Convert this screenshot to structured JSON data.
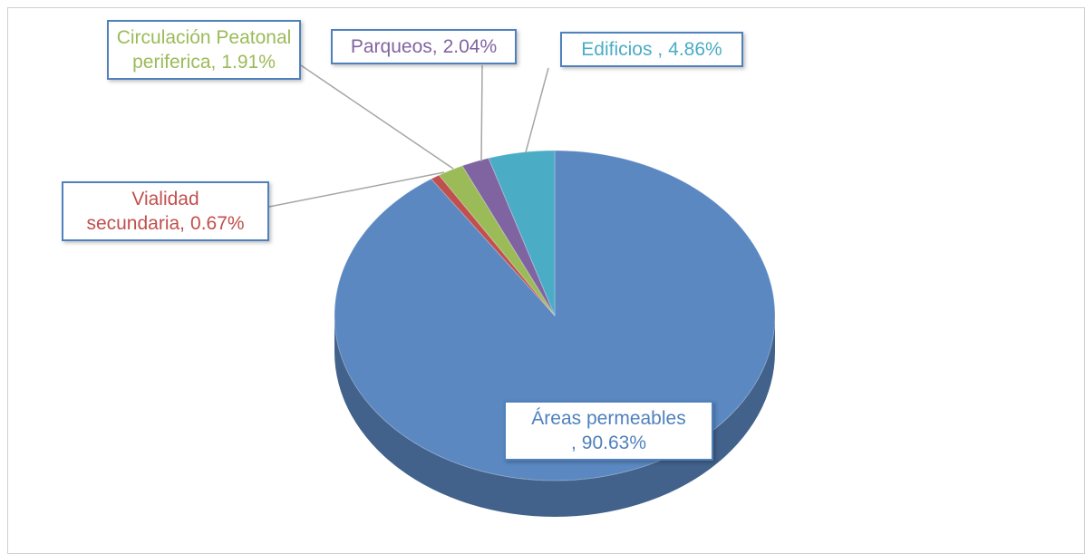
{
  "chart_data": {
    "type": "pie",
    "categories": [
      "Áreas permeables ,",
      "Vialidad secundaria,",
      "Circulación Peatonal periferica,",
      "Parqueos,",
      "Edificios ,"
    ],
    "values": [
      90.63,
      0.67,
      1.91,
      2.04,
      4.86
    ],
    "value_labels": [
      "90.63%",
      "0.67%",
      "1.91%",
      "2.04%",
      "4.86%"
    ],
    "colors": [
      "#5b88c1",
      "#c0504d",
      "#9bbb59",
      "#8064a2",
      "#4bacc6"
    ]
  }
}
